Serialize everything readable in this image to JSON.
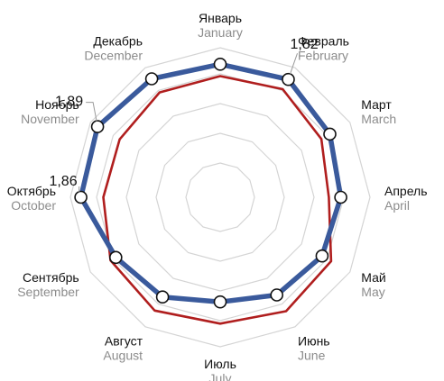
{
  "chart_data": {
    "type": "radar",
    "grid": true,
    "legend": "none",
    "colors": {
      "grid": "#d4d4d4",
      "series_blue": "#3a5a9c",
      "series_red": "#b01e1e",
      "marker_fill": "#ffffff",
      "marker_stroke": "#111111",
      "text": "#111111",
      "text_secondary": "#8c8c8c"
    },
    "categories": [
      {
        "ru": "Январь",
        "en": "January"
      },
      {
        "ru": "Февраль",
        "en": "February"
      },
      {
        "ru": "Март",
        "en": "March"
      },
      {
        "ru": "Апрель",
        "en": "April"
      },
      {
        "ru": "Май",
        "en": "May"
      },
      {
        "ru": "Июнь",
        "en": "June"
      },
      {
        "ru": "Июль",
        "en": "July"
      },
      {
        "ru": "Август",
        "en": "August"
      },
      {
        "ru": "Сентябрь",
        "en": "September"
      },
      {
        "ru": "Октябрь",
        "en": "October"
      },
      {
        "ru": "Ноябрь",
        "en": "November"
      },
      {
        "ru": "Декабрь",
        "en": "December"
      }
    ],
    "range": [
      0,
      2.0
    ],
    "series": [
      {
        "values": [
          1.78,
          1.82,
          1.69,
          1.61,
          1.57,
          1.51,
          1.4,
          1.54,
          1.61,
          1.86,
          1.89,
          1.83
        ]
      },
      {
        "values": [
          1.62,
          1.67,
          1.56,
          1.45,
          1.71,
          1.76,
          1.69,
          1.75,
          1.69,
          1.56,
          1.55,
          1.62
        ]
      }
    ],
    "annotations": [
      {
        "month_index": 1,
        "text": "1,82"
      },
      {
        "month_index": 9,
        "text": "1,86"
      },
      {
        "month_index": 10,
        "text": "1,89"
      }
    ]
  }
}
